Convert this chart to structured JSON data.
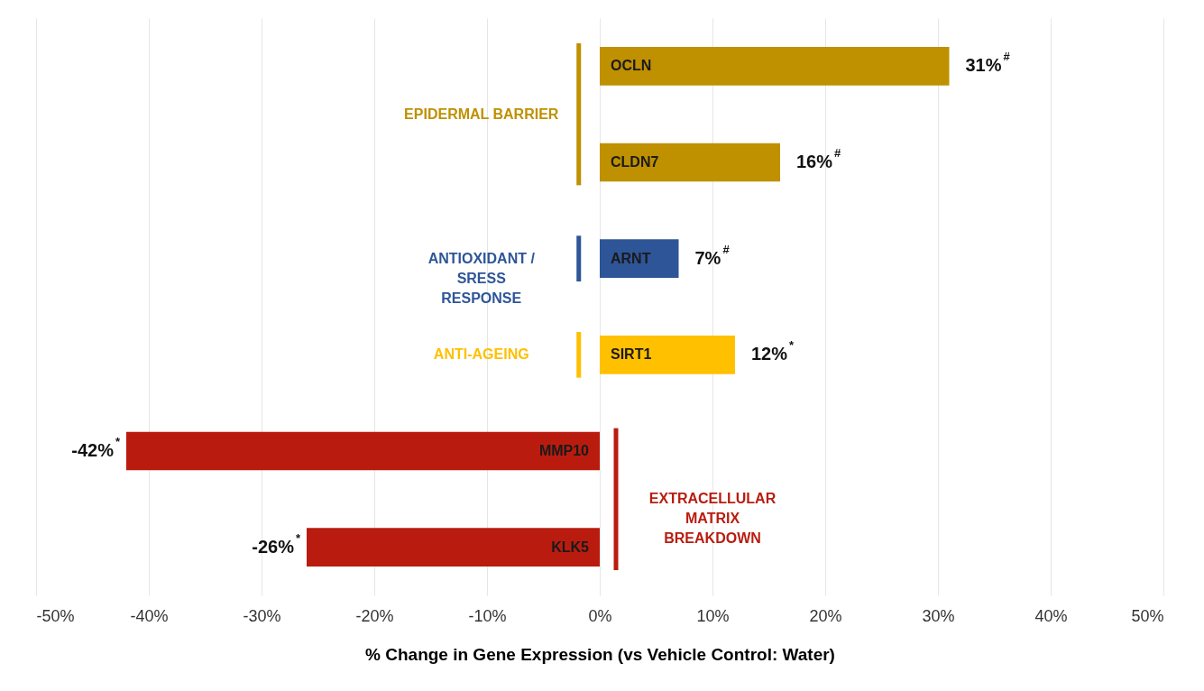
{
  "chart_data": {
    "type": "bar",
    "orientation": "horizontal",
    "categories": [
      "OCLN",
      "CLDN7",
      "ARNT",
      "SIRT1",
      "MMP10",
      "KLK5"
    ],
    "values": [
      31,
      16,
      7,
      12,
      -42,
      -26
    ],
    "colors": [
      "#bf9000",
      "#bf9000",
      "#2e5597",
      "#ffc000",
      "#b91c0f",
      "#b91c0f"
    ],
    "value_labels": [
      "31%$^{#}$",
      "16%$^{#}$",
      "7%$^{#}$",
      "12%$^{*}$",
      "-42%$^{*}$",
      "-26%$^{*}$"
    ],
    "xlabel": "% Change in Gene Expression (vs Vehicle Control: Water)",
    "xlim": [
      -50,
      50
    ],
    "xticks": [
      {
        "value": -50,
        "label": "-50%"
      },
      {
        "value": -40,
        "label": "-40%"
      },
      {
        "value": -30,
        "label": "-30%"
      },
      {
        "value": -20,
        "label": "-20%"
      },
      {
        "value": -10,
        "label": "-10%"
      },
      {
        "value": 0,
        "label": "0%"
      },
      {
        "value": 10,
        "label": "10%"
      },
      {
        "value": 20,
        "label": "20%"
      },
      {
        "value": 30,
        "label": "30%"
      },
      {
        "value": 40,
        "label": "40%"
      },
      {
        "value": 50,
        "label": "50%"
      }
    ],
    "grid": "x",
    "annotations": [
      "EPIDERMAL BARRIER",
      "ANTIOXIDANT /\nSRESS\nRESPONSE",
      "ANTI-AGEING",
      "EXTRACELLULAR\nMATRIX\nBREAKDOWN"
    ]
  }
}
